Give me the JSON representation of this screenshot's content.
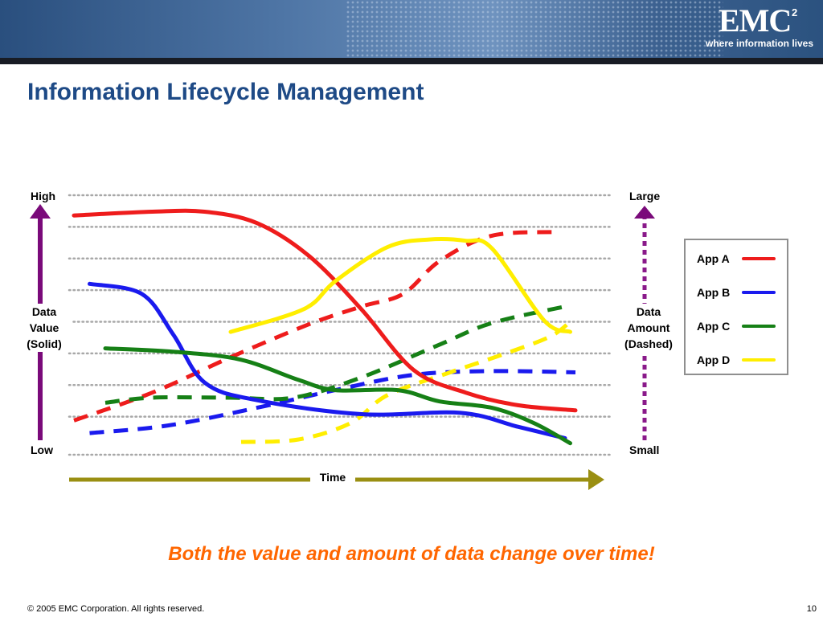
{
  "header": {
    "logo_text": "EMC",
    "logo_superscript": "2",
    "tagline": "where information lives"
  },
  "title": "Information Lifecycle Management",
  "chart_data": {
    "type": "line",
    "x_label": "Time",
    "left_axis": {
      "label": "Data Value (Solid)",
      "label_lines": [
        "Data",
        "Value",
        "(Solid)"
      ],
      "top": "High",
      "bottom": "Low"
    },
    "right_axis": {
      "label": "Data Amount (Dashed)",
      "label_lines": [
        "Data",
        "Amount",
        "(Dashed)"
      ],
      "top": "Large",
      "bottom": "Small"
    },
    "grid": true,
    "y_range": [
      0,
      10
    ],
    "x_range": [
      0,
      10
    ],
    "legend": {
      "placement": "right"
    },
    "series": [
      {
        "name": "App A",
        "color": "#ee1c1c",
        "value": [
          [
            0,
            9.2
          ],
          [
            1.5,
            9.35
          ],
          [
            2.5,
            9.35
          ],
          [
            3.5,
            8.9
          ],
          [
            4.5,
            7.6
          ],
          [
            5.5,
            5.5
          ],
          [
            6.5,
            3.1
          ],
          [
            7.5,
            2.2
          ],
          [
            8.5,
            1.7
          ],
          [
            9.6,
            1.5
          ]
        ],
        "amount": [
          [
            0,
            1.1
          ],
          [
            1.5,
            2.2
          ],
          [
            3,
            3.6
          ],
          [
            4.5,
            4.9
          ],
          [
            5.5,
            5.6
          ],
          [
            6.3,
            6.1
          ],
          [
            7,
            7.4
          ],
          [
            8,
            8.4
          ],
          [
            9.3,
            8.55
          ]
        ]
      },
      {
        "name": "App B",
        "color": "#1a1aee",
        "value": [
          [
            0.3,
            6.5
          ],
          [
            1.3,
            6.1
          ],
          [
            1.9,
            4.5
          ],
          [
            2.5,
            2.6
          ],
          [
            3.5,
            1.9
          ],
          [
            5.5,
            1.35
          ],
          [
            7.4,
            1.4
          ],
          [
            8.5,
            0.85
          ],
          [
            9.4,
            0.4
          ]
        ],
        "amount": [
          [
            0.3,
            0.6
          ],
          [
            1.8,
            0.9
          ],
          [
            3.5,
            1.6
          ],
          [
            5,
            2.3
          ],
          [
            6.5,
            2.9
          ],
          [
            8,
            3.05
          ],
          [
            9.6,
            3.0
          ]
        ]
      },
      {
        "name": "App C",
        "color": "#168016",
        "value": [
          [
            0.6,
            3.95
          ],
          [
            2,
            3.8
          ],
          [
            3.2,
            3.5
          ],
          [
            4.3,
            2.7
          ],
          [
            5,
            2.3
          ],
          [
            6.2,
            2.3
          ],
          [
            7,
            1.85
          ],
          [
            8,
            1.6
          ],
          [
            8.8,
            1.0
          ],
          [
            9.5,
            0.2
          ]
        ],
        "amount": [
          [
            0.6,
            1.8
          ],
          [
            1.5,
            2.0
          ],
          [
            3,
            2.0
          ],
          [
            4.2,
            2.0
          ],
          [
            5.5,
            2.8
          ],
          [
            7,
            4.1
          ],
          [
            8,
            4.95
          ],
          [
            9.4,
            5.6
          ]
        ]
      },
      {
        "name": "App D",
        "color": "#ffee00",
        "value": [
          [
            3,
            4.6
          ],
          [
            4.4,
            5.5
          ],
          [
            5,
            6.6
          ],
          [
            6,
            7.95
          ],
          [
            6.8,
            8.25
          ],
          [
            7.5,
            8.2
          ],
          [
            8,
            7.9
          ],
          [
            9,
            5.05
          ],
          [
            9.5,
            4.6
          ]
        ],
        "amount": [
          [
            3.2,
            0.25
          ],
          [
            4.3,
            0.35
          ],
          [
            5.3,
            1.0
          ],
          [
            6,
            2.1
          ],
          [
            7.2,
            3.0
          ],
          [
            8.2,
            3.7
          ],
          [
            9.1,
            4.4
          ],
          [
            9.5,
            5.0
          ]
        ]
      }
    ]
  },
  "caption": "Both the value and amount of data change over time!",
  "footer": {
    "copyright": "© 2005 EMC Corporation. All rights reserved.",
    "page_number": "10"
  }
}
